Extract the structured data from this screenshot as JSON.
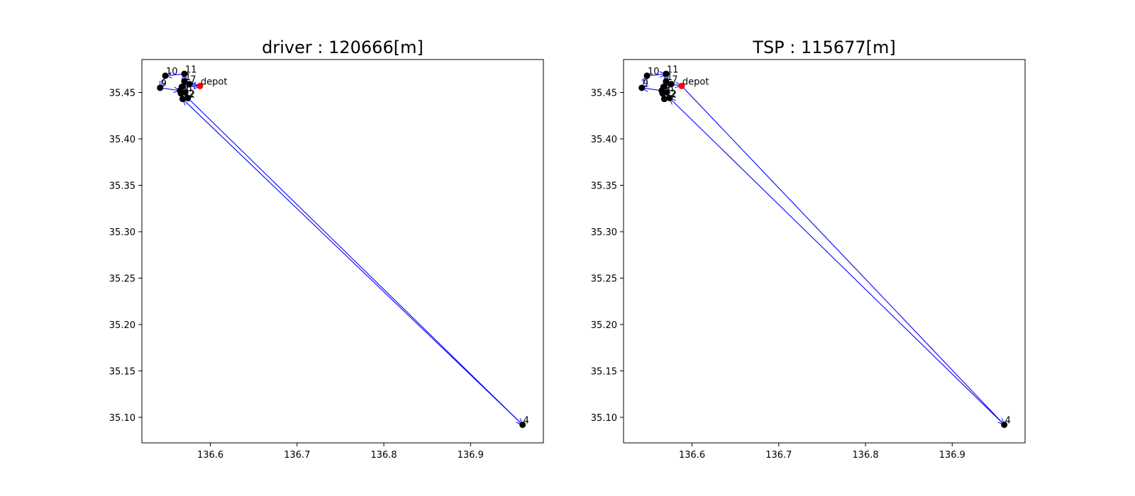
{
  "colors": {
    "route": "#0000ff",
    "node": "#000000",
    "depot": "#ff0000",
    "frame": "#000000"
  },
  "chart_data": [
    {
      "type": "scatter",
      "title": "driver : 120666[m]",
      "xlabel": "",
      "ylabel": "",
      "xlim": [
        136.521,
        136.984
      ],
      "ylim": [
        35.0725,
        35.4855
      ],
      "xticks": [
        "136.6",
        "136.7",
        "136.8",
        "136.9"
      ],
      "yticks": [
        "35.10",
        "35.15",
        "35.20",
        "35.25",
        "35.30",
        "35.35",
        "35.40",
        "35.45"
      ],
      "grid": false,
      "depot": {
        "label": "depot",
        "x": 136.588,
        "y": 35.457
      },
      "nodes": [
        {
          "label": "1",
          "x": 136.57,
          "y": 35.462
        },
        {
          "label": "2",
          "x": 136.574,
          "y": 35.444
        },
        {
          "label": "3",
          "x": 136.565,
          "y": 35.452
        },
        {
          "label": "4",
          "x": 136.96,
          "y": 35.092
        },
        {
          "label": "5",
          "x": 136.566,
          "y": 35.449
        },
        {
          "label": "6",
          "x": 136.571,
          "y": 35.45
        },
        {
          "label": "7",
          "x": 136.576,
          "y": 35.459
        },
        {
          "label": "8",
          "x": 136.567,
          "y": 35.456
        },
        {
          "label": "9",
          "x": 136.542,
          "y": 35.455
        },
        {
          "label": "10",
          "x": 136.548,
          "y": 35.468
        },
        {
          "label": "11",
          "x": 136.57,
          "y": 35.47
        },
        {
          "label": "12",
          "x": 136.568,
          "y": 35.443
        }
      ],
      "route": [
        "depot",
        "7",
        "1",
        "11",
        "10",
        "9",
        "3",
        "6",
        "2",
        "4",
        "12",
        "5",
        "8",
        "depot"
      ]
    },
    {
      "type": "scatter",
      "title": "TSP : 115677[m]",
      "xlabel": "",
      "ylabel": "",
      "xlim": [
        136.521,
        136.984
      ],
      "ylim": [
        35.0725,
        35.4855
      ],
      "xticks": [
        "136.6",
        "136.7",
        "136.8",
        "136.9"
      ],
      "yticks": [
        "35.10",
        "35.15",
        "35.20",
        "35.25",
        "35.30",
        "35.35",
        "35.40",
        "35.45"
      ],
      "grid": false,
      "depot": {
        "label": "depot",
        "x": 136.588,
        "y": 35.457
      },
      "nodes": [
        {
          "label": "1",
          "x": 136.57,
          "y": 35.462
        },
        {
          "label": "2",
          "x": 136.574,
          "y": 35.444
        },
        {
          "label": "3",
          "x": 136.565,
          "y": 35.452
        },
        {
          "label": "4",
          "x": 136.96,
          "y": 35.092
        },
        {
          "label": "5",
          "x": 136.566,
          "y": 35.449
        },
        {
          "label": "6",
          "x": 136.571,
          "y": 35.45
        },
        {
          "label": "7",
          "x": 136.576,
          "y": 35.459
        },
        {
          "label": "8",
          "x": 136.567,
          "y": 35.456
        },
        {
          "label": "9",
          "x": 136.542,
          "y": 35.455
        },
        {
          "label": "10",
          "x": 136.548,
          "y": 35.468
        },
        {
          "label": "11",
          "x": 136.57,
          "y": 35.47
        },
        {
          "label": "12",
          "x": 136.568,
          "y": 35.443
        }
      ],
      "route": [
        "depot",
        "4",
        "2",
        "12",
        "5",
        "6",
        "3",
        "9",
        "10",
        "11",
        "1",
        "8",
        "7",
        "depot"
      ]
    }
  ]
}
